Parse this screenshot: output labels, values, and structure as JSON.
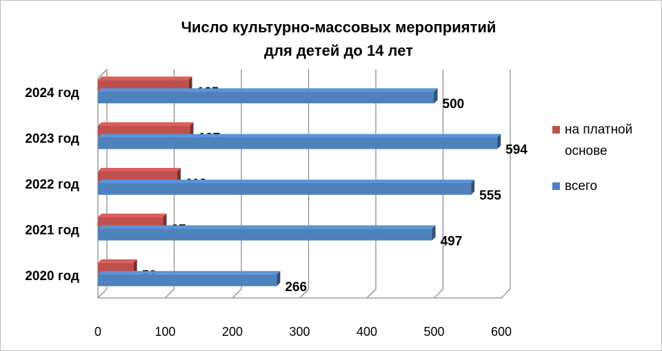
{
  "chart_data": {
    "type": "bar",
    "orientation": "horizontal",
    "title": "Число культурно-массовых мероприятий для детей до 14 лет",
    "title_lines": [
      "Число культурно-массовых мероприятий",
      "для детей до 14 лет"
    ],
    "categories": [
      "2020 год",
      "2021 год",
      "2022 год",
      "2023 год",
      "2024 год"
    ],
    "series": [
      {
        "name": "на платной основе",
        "name_lines": [
          "на платной",
          "основе"
        ],
        "color": "#c0504d",
        "values": [
          53,
          97,
          118,
          137,
          135
        ]
      },
      {
        "name": "всего",
        "name_lines": [
          "всего"
        ],
        "color": "#4f81bd",
        "values": [
          266,
          497,
          555,
          594,
          500
        ]
      }
    ],
    "xlim": [
      0,
      600
    ],
    "xticks": [
      0,
      100,
      200,
      300,
      400,
      500,
      600
    ],
    "grid": true,
    "legend_position": "right"
  }
}
